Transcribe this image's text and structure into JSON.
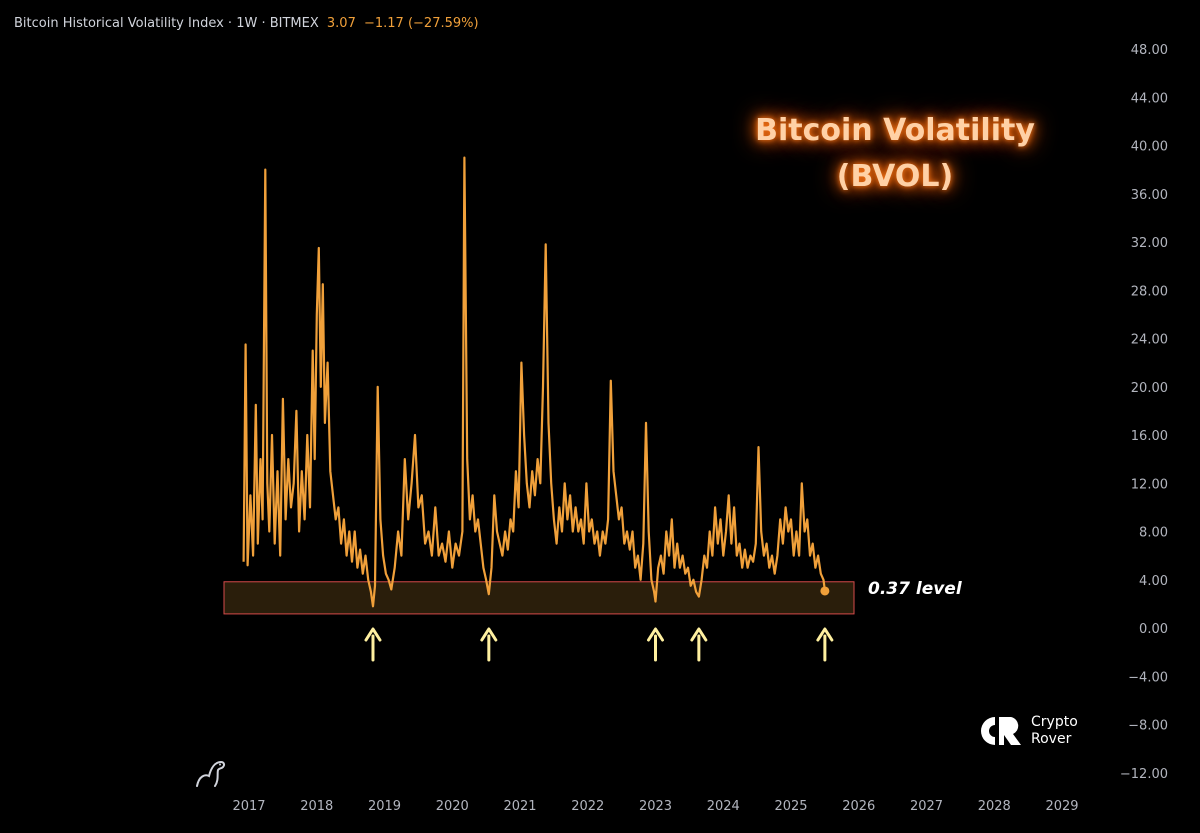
{
  "header": {
    "title": "Bitcoin Historical Volatility Index · 1W · BITMEX",
    "last": "3.07",
    "change": "−1.17 (−27.59%)"
  },
  "overlay": {
    "title_line1": "Bitcoin Volatility",
    "title_line2": "(BVOL)",
    "level_label": "0.37 level"
  },
  "brand": {
    "line1": "Crypto",
    "line2": "Rover",
    "icon": "cr-logo-icon"
  },
  "colors": {
    "line": "#f0a03a",
    "zone_border": "#d64b4b",
    "zone_fill": "#2a1e0b",
    "arrow": "#fff0a0",
    "axis_text": "#b2b5be"
  },
  "chart_data": {
    "type": "line",
    "y_ticks": [
      "48.00",
      "44.00",
      "40.00",
      "36.00",
      "32.00",
      "28.00",
      "24.00",
      "20.00",
      "16.00",
      "12.00",
      "8.00",
      "4.00",
      "0.00",
      "−4.00",
      "−8.00",
      "−12.00"
    ],
    "x_ticks": [
      "2017",
      "2018",
      "2019",
      "2020",
      "2021",
      "2022",
      "2023",
      "2024",
      "2025",
      "2026",
      "2027",
      "2028",
      "2029"
    ],
    "ylim": [
      -12,
      48
    ],
    "xlim": [
      2016.75,
      2029.5
    ],
    "series": [
      {
        "values": [
          [
            2016.92,
            5.5
          ],
          [
            2016.95,
            23.5
          ],
          [
            2016.98,
            5.2
          ],
          [
            2017.02,
            11
          ],
          [
            2017.06,
            6
          ],
          [
            2017.1,
            18.5
          ],
          [
            2017.13,
            7
          ],
          [
            2017.17,
            14
          ],
          [
            2017.2,
            9
          ],
          [
            2017.24,
            38
          ],
          [
            2017.27,
            12
          ],
          [
            2017.3,
            8
          ],
          [
            2017.34,
            16
          ],
          [
            2017.38,
            7
          ],
          [
            2017.42,
            13
          ],
          [
            2017.46,
            6
          ],
          [
            2017.5,
            19
          ],
          [
            2017.54,
            9
          ],
          [
            2017.58,
            14
          ],
          [
            2017.62,
            10
          ],
          [
            2017.66,
            12
          ],
          [
            2017.7,
            18
          ],
          [
            2017.74,
            8
          ],
          [
            2017.78,
            13
          ],
          [
            2017.82,
            9
          ],
          [
            2017.86,
            16
          ],
          [
            2017.9,
            10
          ],
          [
            2017.94,
            23
          ],
          [
            2017.97,
            14
          ],
          [
            2018.0,
            26
          ],
          [
            2018.03,
            31.5
          ],
          [
            2018.06,
            20
          ],
          [
            2018.09,
            28.5
          ],
          [
            2018.12,
            17
          ],
          [
            2018.16,
            22
          ],
          [
            2018.2,
            13
          ],
          [
            2018.24,
            11
          ],
          [
            2018.28,
            9
          ],
          [
            2018.32,
            10
          ],
          [
            2018.36,
            7
          ],
          [
            2018.4,
            9
          ],
          [
            2018.44,
            6
          ],
          [
            2018.48,
            8
          ],
          [
            2018.52,
            5.5
          ],
          [
            2018.56,
            8
          ],
          [
            2018.6,
            5
          ],
          [
            2018.64,
            6.5
          ],
          [
            2018.68,
            4.5
          ],
          [
            2018.72,
            6
          ],
          [
            2018.76,
            4
          ],
          [
            2018.8,
            3
          ],
          [
            2018.83,
            1.8
          ],
          [
            2018.86,
            3.5
          ],
          [
            2018.9,
            20
          ],
          [
            2018.94,
            9
          ],
          [
            2018.98,
            6
          ],
          [
            2019.02,
            4.5
          ],
          [
            2019.06,
            4
          ],
          [
            2019.1,
            3.2
          ],
          [
            2019.15,
            5
          ],
          [
            2019.2,
            8
          ],
          [
            2019.25,
            6
          ],
          [
            2019.3,
            14
          ],
          [
            2019.35,
            9
          ],
          [
            2019.4,
            12
          ],
          [
            2019.45,
            16
          ],
          [
            2019.5,
            10
          ],
          [
            2019.55,
            11
          ],
          [
            2019.6,
            7
          ],
          [
            2019.65,
            8
          ],
          [
            2019.7,
            6
          ],
          [
            2019.75,
            10
          ],
          [
            2019.8,
            6
          ],
          [
            2019.85,
            7
          ],
          [
            2019.9,
            5.5
          ],
          [
            2019.95,
            8
          ],
          [
            2020.0,
            5
          ],
          [
            2020.05,
            7
          ],
          [
            2020.1,
            6
          ],
          [
            2020.15,
            8
          ],
          [
            2020.18,
            39
          ],
          [
            2020.22,
            14
          ],
          [
            2020.26,
            9
          ],
          [
            2020.3,
            11
          ],
          [
            2020.34,
            8
          ],
          [
            2020.38,
            9
          ],
          [
            2020.42,
            7
          ],
          [
            2020.46,
            5
          ],
          [
            2020.5,
            4
          ],
          [
            2020.54,
            2.8
          ],
          [
            2020.58,
            5
          ],
          [
            2020.62,
            11
          ],
          [
            2020.66,
            8
          ],
          [
            2020.7,
            7
          ],
          [
            2020.74,
            6
          ],
          [
            2020.78,
            8
          ],
          [
            2020.82,
            6.5
          ],
          [
            2020.86,
            9
          ],
          [
            2020.9,
            8
          ],
          [
            2020.94,
            13
          ],
          [
            2020.98,
            10
          ],
          [
            2021.02,
            22
          ],
          [
            2021.06,
            16
          ],
          [
            2021.1,
            12
          ],
          [
            2021.14,
            10
          ],
          [
            2021.18,
            13
          ],
          [
            2021.22,
            11
          ],
          [
            2021.26,
            14
          ],
          [
            2021.3,
            12
          ],
          [
            2021.34,
            20
          ],
          [
            2021.38,
            31.8
          ],
          [
            2021.42,
            17
          ],
          [
            2021.46,
            12
          ],
          [
            2021.5,
            9
          ],
          [
            2021.54,
            7
          ],
          [
            2021.58,
            10
          ],
          [
            2021.62,
            8
          ],
          [
            2021.66,
            12
          ],
          [
            2021.7,
            9
          ],
          [
            2021.74,
            11
          ],
          [
            2021.78,
            8
          ],
          [
            2021.82,
            10
          ],
          [
            2021.86,
            8
          ],
          [
            2021.9,
            9
          ],
          [
            2021.94,
            7
          ],
          [
            2021.98,
            12
          ],
          [
            2022.02,
            8
          ],
          [
            2022.06,
            9
          ],
          [
            2022.1,
            7
          ],
          [
            2022.14,
            8
          ],
          [
            2022.18,
            6
          ],
          [
            2022.22,
            8
          ],
          [
            2022.26,
            7
          ],
          [
            2022.3,
            9
          ],
          [
            2022.34,
            20.5
          ],
          [
            2022.38,
            13
          ],
          [
            2022.42,
            11
          ],
          [
            2022.46,
            9
          ],
          [
            2022.5,
            10
          ],
          [
            2022.54,
            7
          ],
          [
            2022.58,
            8
          ],
          [
            2022.62,
            6.5
          ],
          [
            2022.66,
            8
          ],
          [
            2022.7,
            5
          ],
          [
            2022.74,
            6
          ],
          [
            2022.78,
            4
          ],
          [
            2022.82,
            7
          ],
          [
            2022.86,
            17
          ],
          [
            2022.9,
            8
          ],
          [
            2022.94,
            4
          ],
          [
            2022.98,
            3
          ],
          [
            2023.0,
            2.2
          ],
          [
            2023.04,
            5
          ],
          [
            2023.08,
            6
          ],
          [
            2023.12,
            4.5
          ],
          [
            2023.16,
            8
          ],
          [
            2023.2,
            6
          ],
          [
            2023.24,
            9
          ],
          [
            2023.28,
            5
          ],
          [
            2023.32,
            7
          ],
          [
            2023.36,
            5
          ],
          [
            2023.4,
            6
          ],
          [
            2023.44,
            4.5
          ],
          [
            2023.48,
            5
          ],
          [
            2023.52,
            3.5
          ],
          [
            2023.56,
            4
          ],
          [
            2023.6,
            3
          ],
          [
            2023.64,
            2.6
          ],
          [
            2023.68,
            4
          ],
          [
            2023.72,
            6
          ],
          [
            2023.76,
            5
          ],
          [
            2023.8,
            8
          ],
          [
            2023.84,
            6
          ],
          [
            2023.88,
            10
          ],
          [
            2023.92,
            7
          ],
          [
            2023.96,
            9
          ],
          [
            2024.0,
            6
          ],
          [
            2024.04,
            8
          ],
          [
            2024.08,
            11
          ],
          [
            2024.12,
            7
          ],
          [
            2024.16,
            10
          ],
          [
            2024.2,
            6
          ],
          [
            2024.24,
            7
          ],
          [
            2024.28,
            5
          ],
          [
            2024.32,
            6.5
          ],
          [
            2024.36,
            5
          ],
          [
            2024.4,
            6
          ],
          [
            2024.44,
            5.5
          ],
          [
            2024.48,
            7
          ],
          [
            2024.52,
            15
          ],
          [
            2024.56,
            8
          ],
          [
            2024.6,
            6
          ],
          [
            2024.64,
            7
          ],
          [
            2024.68,
            5
          ],
          [
            2024.72,
            6
          ],
          [
            2024.76,
            4.5
          ],
          [
            2024.8,
            6
          ],
          [
            2024.84,
            9
          ],
          [
            2024.88,
            7
          ],
          [
            2024.92,
            10
          ],
          [
            2024.96,
            8
          ],
          [
            2025.0,
            9
          ],
          [
            2025.04,
            6
          ],
          [
            2025.08,
            8
          ],
          [
            2025.12,
            6
          ],
          [
            2025.16,
            12
          ],
          [
            2025.2,
            8
          ],
          [
            2025.24,
            9
          ],
          [
            2025.28,
            6
          ],
          [
            2025.32,
            7
          ],
          [
            2025.36,
            5
          ],
          [
            2025.4,
            6
          ],
          [
            2025.44,
            4.5
          ],
          [
            2025.48,
            4
          ],
          [
            2025.5,
            3.07
          ]
        ]
      }
    ],
    "zone": {
      "y_low": 1.5,
      "y_high": 3.5,
      "x_start": 2016.75,
      "x_end": 2026.0
    },
    "arrows_at": [
      2018.83,
      2020.54,
      2023.0,
      2023.64,
      2025.5
    ]
  }
}
